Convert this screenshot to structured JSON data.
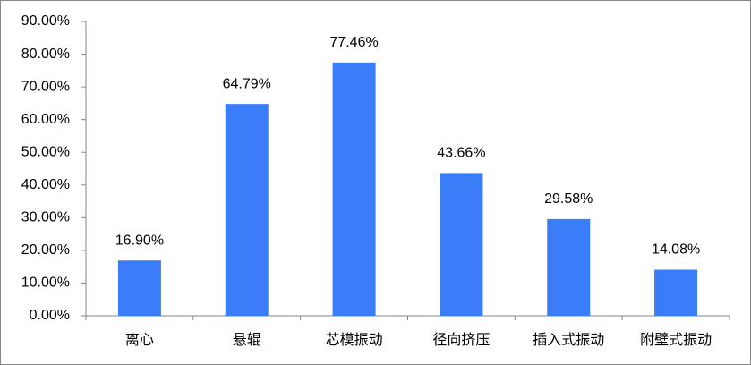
{
  "chart_data": {
    "type": "bar",
    "categories": [
      "离心",
      "悬辊",
      "芯模振动",
      "径向挤压",
      "插入式振动",
      "附壁式振动"
    ],
    "values": [
      16.9,
      64.79,
      77.46,
      43.66,
      29.58,
      14.08
    ],
    "value_labels": [
      "16.90%",
      "64.79%",
      "77.46%",
      "43.66%",
      "29.58%",
      "14.08%"
    ],
    "color": "#3b7cf8",
    "ylim": [
      0,
      90
    ],
    "yticks": [
      {
        "value": 0,
        "label": "0.00%"
      },
      {
        "value": 10,
        "label": "10.00%"
      },
      {
        "value": 20,
        "label": "20.00%"
      },
      {
        "value": 30,
        "label": "30.00%"
      },
      {
        "value": 40,
        "label": "40.00%"
      },
      {
        "value": 50,
        "label": "50.00%"
      },
      {
        "value": 60,
        "label": "60.00%"
      },
      {
        "value": 70,
        "label": "70.00%"
      },
      {
        "value": 80,
        "label": "80.00%"
      },
      {
        "value": 90,
        "label": "90.00%"
      }
    ],
    "grid": false
  }
}
